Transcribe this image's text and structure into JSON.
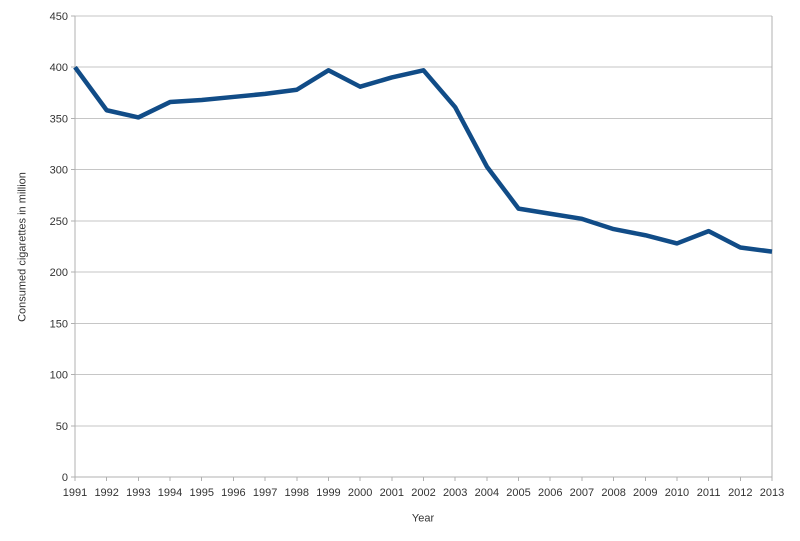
{
  "theme": {
    "background": "#ffffff",
    "line_color": "#114c87",
    "grid_color": "#c6c6c6",
    "axis_color": "#b0b0b0",
    "text_color": "#333333"
  },
  "chart_data": {
    "type": "line",
    "title": "",
    "xlabel": "Year",
    "ylabel": "Consumed cigarettes in million",
    "x": [
      1991,
      1992,
      1993,
      1994,
      1995,
      1996,
      1997,
      1998,
      1999,
      2000,
      2001,
      2002,
      2003,
      2004,
      2005,
      2006,
      2007,
      2008,
      2009,
      2010,
      2011,
      2012,
      2013
    ],
    "series": [
      {
        "name": "Consumed cigarettes",
        "values": [
          400,
          358,
          351,
          366,
          368,
          371,
          374,
          378,
          397,
          381,
          390,
          397,
          361,
          303,
          262,
          257,
          252,
          242,
          236,
          228,
          240,
          224,
          220
        ]
      }
    ],
    "ylim": [
      0,
      450
    ],
    "ytick_step": 50,
    "grid": true,
    "legend": false
  }
}
